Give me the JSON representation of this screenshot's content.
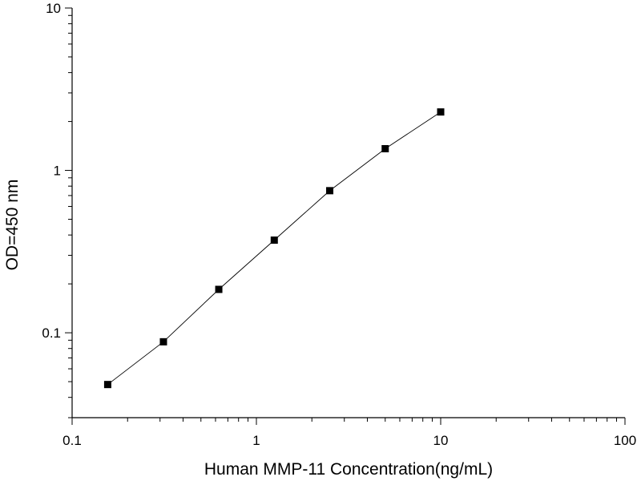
{
  "chart_data": {
    "type": "scatter",
    "title": "",
    "xlabel": "Human MMP-11  Concentration(ng/mL)",
    "ylabel": "OD=450 nm",
    "xscale": "log",
    "yscale": "log",
    "xlim": [
      0.1,
      100
    ],
    "ylim": [
      0.03,
      10
    ],
    "x_ticks": [
      0.1,
      1,
      10,
      100
    ],
    "x_tick_labels": [
      "0.1",
      "1",
      "10",
      "100"
    ],
    "y_ticks": [
      0.1,
      1,
      10
    ],
    "y_tick_labels": [
      "0.1",
      "1",
      "10"
    ],
    "grid": false,
    "legend": "none",
    "marker": "square",
    "line": "connected",
    "colors": {
      "marker": "#000000",
      "line": "#000000",
      "axis": "#000000"
    },
    "series": [
      {
        "x": [
          0.156,
          0.313,
          0.625,
          1.25,
          2.5,
          5,
          10
        ],
        "y": [
          0.048,
          0.088,
          0.185,
          0.372,
          0.75,
          1.36,
          2.29
        ]
      }
    ]
  }
}
